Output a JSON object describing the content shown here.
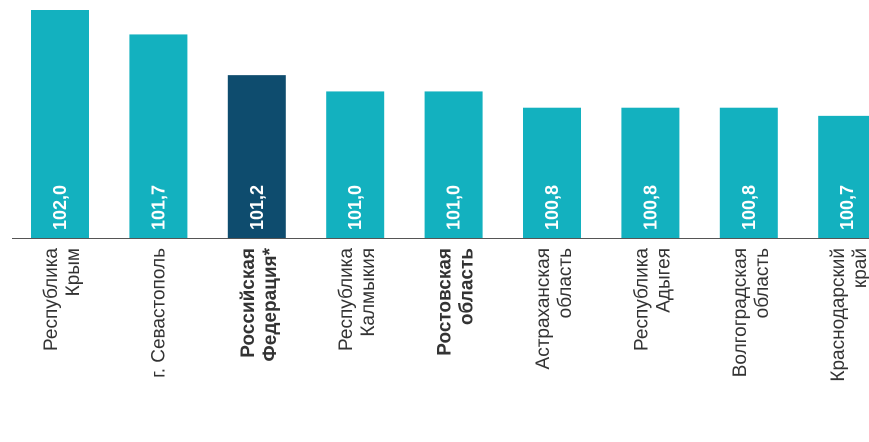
{
  "chart_data": {
    "type": "bar",
    "title": "",
    "xlabel": "",
    "ylabel": "",
    "ylim": [
      99.2,
      102.0
    ],
    "grid": false,
    "legend": "none",
    "categories": [
      [
        "Республика",
        "Крым"
      ],
      [
        "г. Севастополь"
      ],
      [
        "Российская",
        "Федерация*"
      ],
      [
        "Республика",
        "Калмыкия"
      ],
      [
        "Ростовская",
        "область"
      ],
      [
        "Астраханская",
        "область"
      ],
      [
        "Республика",
        "Адыгея"
      ],
      [
        "Волгоградская",
        "область"
      ],
      [
        "Краснодарский",
        "край"
      ]
    ],
    "bold_categories": [
      2,
      4
    ],
    "values": [
      102.0,
      101.7,
      101.2,
      101.0,
      101.0,
      100.8,
      100.8,
      100.8,
      100.7
    ],
    "value_labels": [
      "102,0",
      "101,7",
      "101,2",
      "101,0",
      "101,0",
      "100,8",
      "100,8",
      "100,8",
      "100,7"
    ],
    "highlight_index": 2,
    "colors": {
      "bar": "#13B1BF",
      "highlight": "#0E4C6E",
      "axis": "#555555",
      "label": "#333333"
    }
  }
}
